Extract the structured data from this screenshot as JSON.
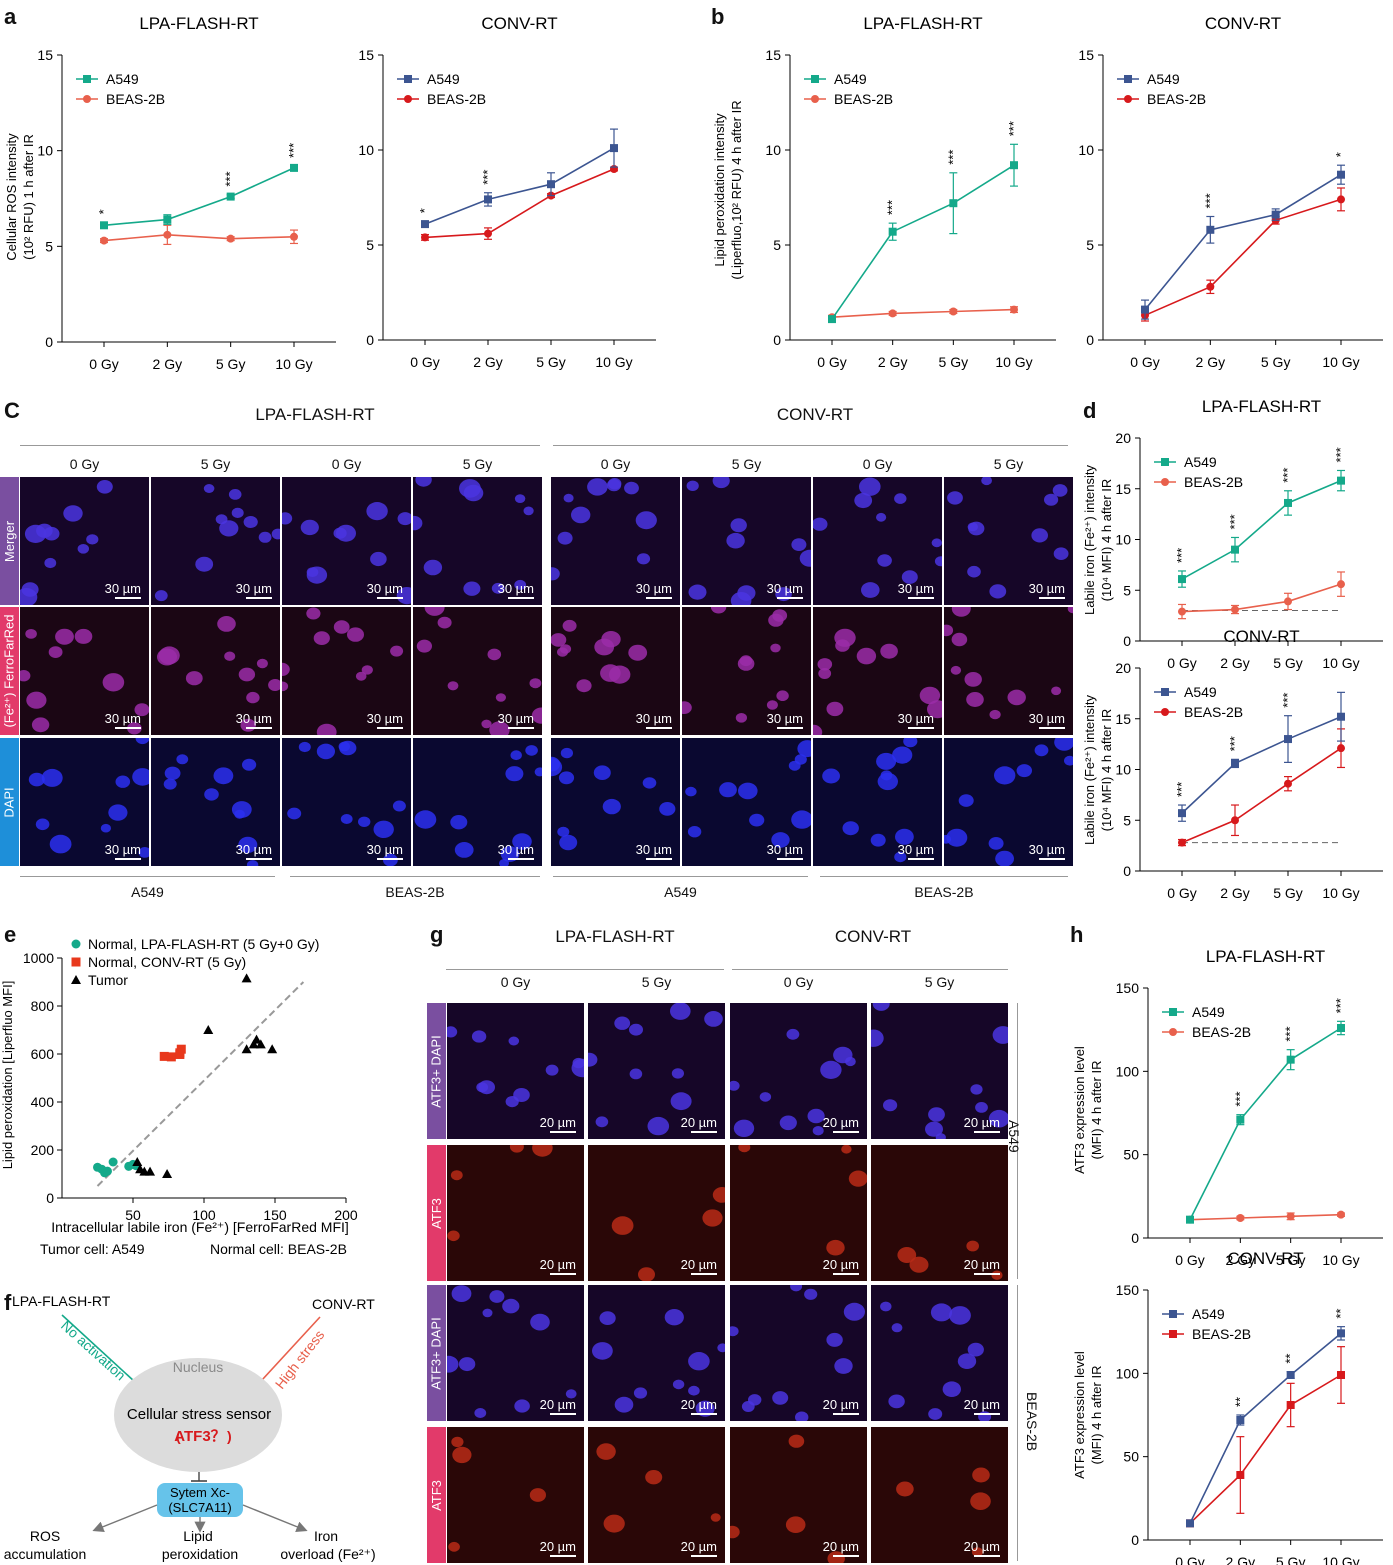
{
  "panels": {
    "a": "a",
    "b": "b",
    "c": "C",
    "d": "d",
    "e": "e",
    "f": "f",
    "g": "g",
    "h": "h"
  },
  "headers": {
    "flash": "LPA-FLASH-RT",
    "conv": "CONV-RT"
  },
  "colors": {
    "teal": "#14a98a",
    "salmon": "#e8604c",
    "navy": "#3c5591",
    "red": "#d7191c",
    "purple": "#7a4fa0",
    "pink": "#e23a6a",
    "blue": "#1e8fd9",
    "cellbg": "#1a0a3a"
  },
  "axes": {
    "ros_ylabel": [
      "Cellular ROS intensity",
      "(10² RFU) 1 h after IR"
    ],
    "lipid_ylabel": [
      "Lipid peroxidation intensity",
      "(Liperfluo,10² RFU) 4 h after IR"
    ],
    "iron_ylabel": [
      "Labile iron (Fe²⁺) intensity",
      "(10⁴ MFI) 4 h after IR"
    ],
    "atf3_ylabel": [
      "ATF3 expression level",
      "(MFI) 4 h after IR"
    ],
    "e_xlabel": "Intracellular labile iron (Fe²⁺) [FerroFarRed MFI]",
    "e_ylabel": "Lipid peroxidation [Liperfluo MFI]"
  },
  "chart_data": [
    {
      "id": "a1",
      "type": "line",
      "title": "LPA-FLASH-RT",
      "categories": [
        "0 Gy",
        "2 Gy",
        "5 Gy",
        "10 Gy"
      ],
      "ylim": [
        0,
        15
      ],
      "yticks": [
        0,
        5,
        10,
        15
      ],
      "series": [
        {
          "name": "A549",
          "values": [
            6.1,
            6.4,
            7.6,
            9.1
          ],
          "err": [
            0.15,
            0.25,
            0.1,
            0.1
          ],
          "color": "#14a98a",
          "marker": "square"
        },
        {
          "name": "BEAS-2B",
          "values": [
            5.3,
            5.6,
            5.4,
            5.5
          ],
          "err": [
            0.1,
            0.5,
            0.1,
            0.35
          ],
          "color": "#e8604c",
          "marker": "circle"
        }
      ],
      "stars": [
        "*",
        "",
        "***",
        "***"
      ]
    },
    {
      "id": "a2",
      "type": "line",
      "title": "CONV-RT",
      "categories": [
        "0 Gy",
        "2 Gy",
        "5 Gy",
        "10 Gy"
      ],
      "ylim": [
        0,
        15
      ],
      "yticks": [
        0,
        5,
        10,
        15
      ],
      "series": [
        {
          "name": "A549",
          "values": [
            6.1,
            7.4,
            8.2,
            10.1
          ],
          "err": [
            0.15,
            0.35,
            0.6,
            1.0
          ],
          "color": "#3c5591",
          "marker": "square"
        },
        {
          "name": "BEAS-2B",
          "values": [
            5.4,
            5.6,
            7.6,
            9.0
          ],
          "err": [
            0.15,
            0.3,
            0.1,
            0.1
          ],
          "color": "#d7191c",
          "marker": "circle"
        }
      ],
      "stars": [
        "*",
        "***",
        "",
        ""
      ]
    },
    {
      "id": "b1",
      "type": "line",
      "title": "LPA-FLASH-RT",
      "categories": [
        "0 Gy",
        "2 Gy",
        "5 Gy",
        "10 Gy"
      ],
      "ylim": [
        0,
        15
      ],
      "yticks": [
        0,
        5,
        10,
        15
      ],
      "series": [
        {
          "name": "A549",
          "values": [
            1.1,
            5.7,
            7.2,
            9.2
          ],
          "err": [
            0.1,
            0.45,
            1.6,
            1.1
          ],
          "color": "#14a98a",
          "marker": "square"
        },
        {
          "name": "BEAS-2B",
          "values": [
            1.2,
            1.4,
            1.5,
            1.6
          ],
          "err": [
            0.1,
            0.1,
            0.1,
            0.15
          ],
          "color": "#e8604c",
          "marker": "circle"
        }
      ],
      "stars": [
        "",
        "***",
        "***",
        "***"
      ]
    },
    {
      "id": "b2",
      "type": "line",
      "title": "CONV-RT",
      "categories": [
        "0 Gy",
        "2 Gy",
        "5 Gy",
        "10 Gy"
      ],
      "ylim": [
        0,
        15
      ],
      "yticks": [
        0,
        5,
        10,
        15
      ],
      "series": [
        {
          "name": "A549",
          "values": [
            1.6,
            5.8,
            6.6,
            8.7
          ],
          "err": [
            0.5,
            0.7,
            0.3,
            0.5
          ],
          "color": "#3c5591",
          "marker": "square"
        },
        {
          "name": "BEAS-2B",
          "values": [
            1.3,
            2.8,
            6.3,
            7.4
          ],
          "err": [
            0.3,
            0.35,
            0.2,
            0.6
          ],
          "color": "#d7191c",
          "marker": "circle"
        }
      ],
      "stars": [
        "",
        "***",
        "",
        "*"
      ]
    },
    {
      "id": "d1",
      "type": "line",
      "title": "LPA-FLASH-RT",
      "categories": [
        "0 Gy",
        "2 Gy",
        "5 Gy",
        "10 Gy"
      ],
      "ylim": [
        0,
        20
      ],
      "yticks": [
        0,
        5,
        10,
        15,
        20
      ],
      "dashed": 3,
      "series": [
        {
          "name": "A549",
          "values": [
            6.1,
            9.0,
            13.6,
            15.8
          ],
          "err": [
            0.8,
            1.2,
            1.2,
            1.0
          ],
          "color": "#14a98a",
          "marker": "square"
        },
        {
          "name": "BEAS-2B",
          "values": [
            2.9,
            3.1,
            3.9,
            5.6
          ],
          "err": [
            0.7,
            0.4,
            0.8,
            1.2
          ],
          "color": "#e8604c",
          "marker": "circle"
        }
      ],
      "stars": [
        "***",
        "***",
        "***",
        "***"
      ]
    },
    {
      "id": "d2",
      "type": "line",
      "title": "CONV-RT",
      "categories": [
        "0 Gy",
        "2 Gy",
        "5 Gy",
        "10 Gy"
      ],
      "ylim": [
        0,
        20
      ],
      "yticks": [
        0,
        5,
        10,
        15,
        20
      ],
      "dashed": 2.8,
      "series": [
        {
          "name": "A549",
          "values": [
            5.7,
            10.6,
            13.0,
            15.2
          ],
          "err": [
            0.8,
            0.4,
            2.3,
            2.4
          ],
          "color": "#3c5591",
          "marker": "square"
        },
        {
          "name": "BEAS-2B",
          "values": [
            2.8,
            5.0,
            8.6,
            12.1
          ],
          "err": [
            0.3,
            1.5,
            0.7,
            1.9
          ],
          "color": "#d7191c",
          "marker": "circle"
        }
      ],
      "stars": [
        "***",
        "***",
        "***",
        ""
      ]
    },
    {
      "id": "h1",
      "type": "line",
      "title": "LPA-FLASH-RT",
      "categories": [
        "0 Gy",
        "2 Gy",
        "5 Gy",
        "10 Gy"
      ],
      "ylim": [
        0,
        150
      ],
      "yticks": [
        0,
        50,
        100,
        150
      ],
      "series": [
        {
          "name": "A549",
          "values": [
            11,
            71,
            107,
            126
          ],
          "err": [
            1,
            3,
            6,
            4
          ],
          "color": "#14a98a",
          "marker": "square"
        },
        {
          "name": "BEAS-2B",
          "values": [
            11,
            12,
            13,
            14
          ],
          "err": [
            1,
            1,
            2,
            1
          ],
          "color": "#e8604c",
          "marker": "circle"
        }
      ],
      "stars": [
        "",
        "***",
        "***",
        "***"
      ]
    },
    {
      "id": "h2",
      "type": "line",
      "title": "CONV-RT",
      "categories": [
        "0 Gy",
        "2 Gy",
        "5 Gy",
        "10 Gy"
      ],
      "ylim": [
        0,
        150
      ],
      "yticks": [
        0,
        50,
        100,
        150
      ],
      "series": [
        {
          "name": "A549",
          "values": [
            10,
            72,
            99,
            124
          ],
          "err": [
            1,
            3,
            2,
            4
          ],
          "color": "#3c5591",
          "marker": "square"
        },
        {
          "name": "BEAS-2B",
          "values": [
            10,
            39,
            81,
            99
          ],
          "err": [
            1,
            23,
            13,
            17
          ],
          "color": "#d7191c",
          "marker": "square"
        }
      ],
      "stars": [
        "",
        "**",
        "**",
        "**"
      ]
    },
    {
      "id": "e",
      "type": "scatter",
      "xlim": [
        0,
        200
      ],
      "ylim": [
        0,
        1000
      ],
      "xticks": [
        50,
        100,
        150,
        200
      ],
      "yticks": [
        0,
        200,
        400,
        600,
        800,
        1000
      ],
      "series": [
        {
          "name": "Normal, LPA-FLASH-RT (5 Gy+0 Gy)",
          "color": "#14a98a",
          "marker": "circle",
          "points": [
            [
              25,
              128
            ],
            [
              28,
              120
            ],
            [
              30,
              105
            ],
            [
              32,
              112
            ],
            [
              36,
              150
            ],
            [
              47,
              132
            ],
            [
              50,
              140
            ],
            [
              52,
              135
            ]
          ]
        },
        {
          "name": "Normal, CONV-RT (5 Gy)",
          "color": "#e8381c",
          "marker": "square",
          "points": [
            [
              72,
              590
            ],
            [
              77,
              588
            ],
            [
              83,
              605
            ],
            [
              84,
              620
            ],
            [
              83,
              598
            ]
          ]
        },
        {
          "name": "Tumor",
          "color": "#000000",
          "marker": "triangle",
          "points": [
            [
              53,
              150
            ],
            [
              55,
              120
            ],
            [
              58,
              110
            ],
            [
              62,
              110
            ],
            [
              74,
              100
            ],
            [
              103,
              700
            ],
            [
              130,
              915
            ],
            [
              130,
              620
            ],
            [
              135,
              640
            ],
            [
              137,
              660
            ],
            [
              140,
              640
            ],
            [
              148,
              620
            ]
          ]
        }
      ],
      "fit": [
        [
          25,
          50
        ],
        [
          170,
          900
        ]
      ],
      "notes": [
        "Tumor cell: A549",
        "Normal cell: BEAS-2B"
      ]
    }
  ],
  "panelC": {
    "doses": [
      "0 Gy",
      "5 Gy",
      "0 Gy",
      "5 Gy",
      "0 Gy",
      "5 Gy",
      "0 Gy",
      "5 Gy"
    ],
    "rows": [
      "Merger",
      "(Fe²⁺) FerroFarRed",
      "DAPI"
    ],
    "scale": "30 µm",
    "cells": [
      "A549",
      "BEAS-2B",
      "A549",
      "BEAS-2B"
    ]
  },
  "panelG": {
    "doses": [
      "0 Gy",
      "5 Gy",
      "0 Gy",
      "5 Gy"
    ],
    "rows": [
      "ATF3+ DAPI",
      "ATF3",
      "ATF3+ DAPI",
      "ATF3"
    ],
    "scale": "20 µm",
    "cells": [
      "A549",
      "BEAS-2B"
    ]
  },
  "panelF": {
    "flash": "LPA-FLASH-RT",
    "conv": "CONV-RT",
    "no_act": "No activation",
    "high": "High stress",
    "nucleus": "Nucleus",
    "sensor": "Cellular stress sensor",
    "atf3_q": "ATF3？",
    "xc1": "Sytem Xc-",
    "xc2": "(SLC7A11)",
    "out1a": "ROS",
    "out1b": "accumulation",
    "out2a": "Lipid",
    "out2b": "peroxidation",
    "out3a": "Iron",
    "out3b": "overload (Fe²⁺)"
  }
}
